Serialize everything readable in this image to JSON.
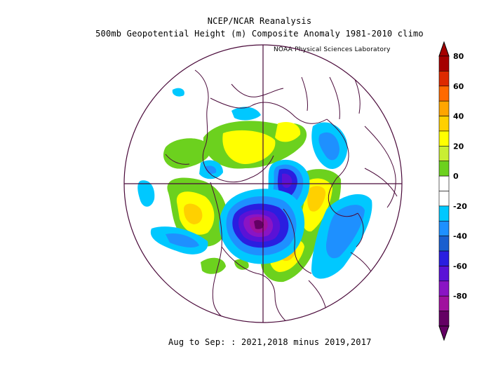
{
  "header": {
    "title": "NCEP/NCAR Reanalysis",
    "subtitle": "500mb Geopotential Height (m) Composite Anomaly 1981-2010 climo",
    "credit": "NOAA Physical Sciences Laboratory"
  },
  "footer": {
    "period": "Aug to Sep: : 2021,2018 minus 2019,2017"
  },
  "colorbar": {
    "labels": [
      "80",
      "60",
      "40",
      "20",
      "0",
      "-20",
      "-40",
      "-60",
      "-80"
    ],
    "colors": [
      "#a50000",
      "#dd2a00",
      "#ff6a00",
      "#ffa500",
      "#ffd000",
      "#ffff00",
      "#c9ee33",
      "#6cd11e",
      "#ffffff",
      "#ffffff",
      "#00c8ff",
      "#1e90ff",
      "#1a5fcf",
      "#2a1ee0",
      "#5a12d6",
      "#8a14c4",
      "#a0119e",
      "#640064"
    ]
  },
  "map": {
    "projection": "north-polar-stereographic",
    "anomaly_regions": [
      {
        "name": "north-america-low",
        "sign": "negative",
        "peak": -80
      },
      {
        "name": "greenland-low",
        "sign": "negative",
        "peak": -40
      },
      {
        "name": "eastern-pacific-ridge",
        "sign": "positive",
        "peak": 50
      },
      {
        "name": "western-europe-ridge",
        "sign": "positive",
        "peak": 50
      },
      {
        "name": "atlantic-ridge",
        "sign": "positive",
        "peak": 40
      },
      {
        "name": "siberia-ridge",
        "sign": "positive",
        "peak": 40
      },
      {
        "name": "north-atlantic-trough",
        "sign": "negative",
        "peak": -30
      },
      {
        "name": "central-asia-low",
        "sign": "negative",
        "peak": -20
      }
    ]
  }
}
